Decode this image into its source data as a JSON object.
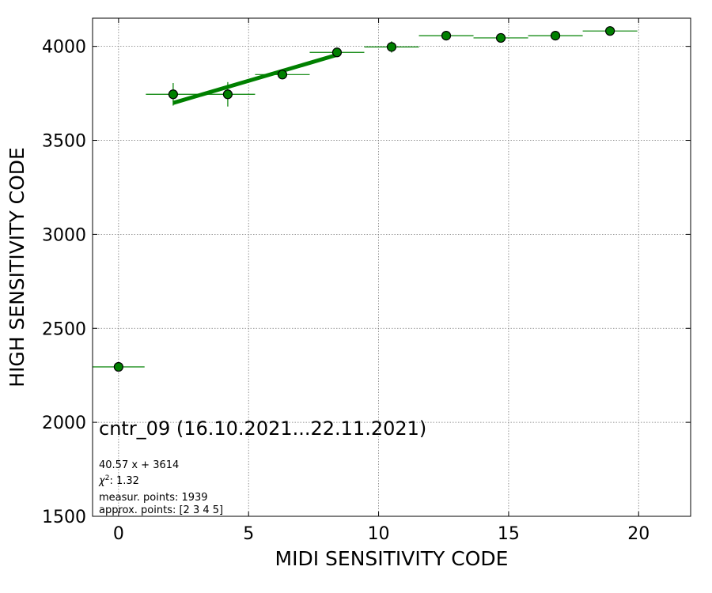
{
  "chart_data": {
    "type": "scatter",
    "xlabel": "MIDI SENSITIVITY CODE",
    "ylabel": "HIGH SENSITIVITY CODE",
    "xlim": [
      -1,
      22
    ],
    "ylim": [
      1500,
      4150
    ],
    "xticks": [
      0,
      5,
      10,
      15,
      20
    ],
    "yticks": [
      1500,
      2000,
      2500,
      3000,
      3500,
      4000
    ],
    "grid": true,
    "grid_style": "dotted",
    "marker_color": "#008000",
    "fit_color": "#008000",
    "points": [
      {
        "x": 0.0,
        "y": 2295,
        "xerr": 1.0,
        "yerr": 0
      },
      {
        "x": 2.1,
        "y": 3745,
        "xerr": 1.05,
        "yerr": 60
      },
      {
        "x": 4.2,
        "y": 3745,
        "xerr": 1.05,
        "yerr": 65
      },
      {
        "x": 6.3,
        "y": 3850,
        "xerr": 1.05,
        "yerr": 25
      },
      {
        "x": 8.4,
        "y": 3968,
        "xerr": 1.05,
        "yerr": 15
      },
      {
        "x": 10.5,
        "y": 3997,
        "xerr": 1.05,
        "yerr": 30
      },
      {
        "x": 12.6,
        "y": 4057,
        "xerr": 1.05,
        "yerr": 10
      },
      {
        "x": 14.7,
        "y": 4045,
        "xerr": 1.05,
        "yerr": 8
      },
      {
        "x": 16.8,
        "y": 4057,
        "xerr": 1.05,
        "yerr": 8
      },
      {
        "x": 18.9,
        "y": 4082,
        "xerr": 1.05,
        "yerr": 8
      }
    ],
    "fit": {
      "slope": 40.57,
      "intercept": 3614,
      "x_range": [
        2.1,
        8.4
      ]
    },
    "annotation": {
      "title": "cntr_09 (16.10.2021...22.11.2021)",
      "equation": "40.57 x + 3614",
      "chi2_symbol": "χ",
      "chi2_exp": "2",
      "chi2_value": ": 1.32",
      "measured": "measur. points: 1939",
      "approx": "approx. points: [2 3 4 5]"
    }
  }
}
